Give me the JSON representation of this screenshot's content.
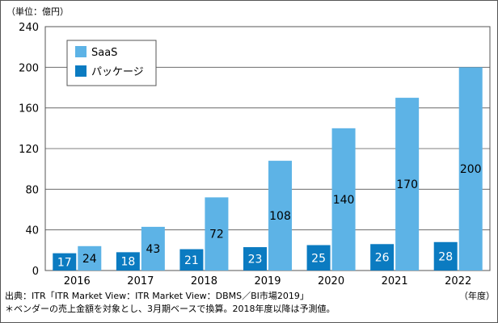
{
  "chart_data": {
    "type": "bar",
    "title": "",
    "xlabel": "",
    "ylabel": "",
    "y_unit_label": "（単位：億円）",
    "x_unit_label": "（年度）",
    "categories": [
      "2016",
      "2017",
      "2018",
      "2019",
      "2020",
      "2021",
      "2022"
    ],
    "series": [
      {
        "name": "パッケージ",
        "color": "#0b7bc1",
        "values": [
          17,
          18,
          21,
          23,
          25,
          26,
          28
        ]
      },
      {
        "name": "SaaS",
        "color": "#5db3e6",
        "values": [
          24,
          43,
          72,
          108,
          140,
          170,
          200
        ]
      }
    ],
    "ylim": [
      0,
      240
    ],
    "yticks": [
      "0",
      "40",
      "80",
      "120",
      "160",
      "200",
      "240"
    ],
    "grid": true,
    "legend_placement": "top-left",
    "legend_order": [
      "SaaS",
      "パッケージ"
    ]
  },
  "notes": {
    "source": "出典：ITR「ITR Market View：ITR Market View：DBMS／BI市場2019」",
    "footnote": "＊ベンダーの売上金額を対象とし、3月期ベースで換算。2018年度以降は予測値。"
  }
}
